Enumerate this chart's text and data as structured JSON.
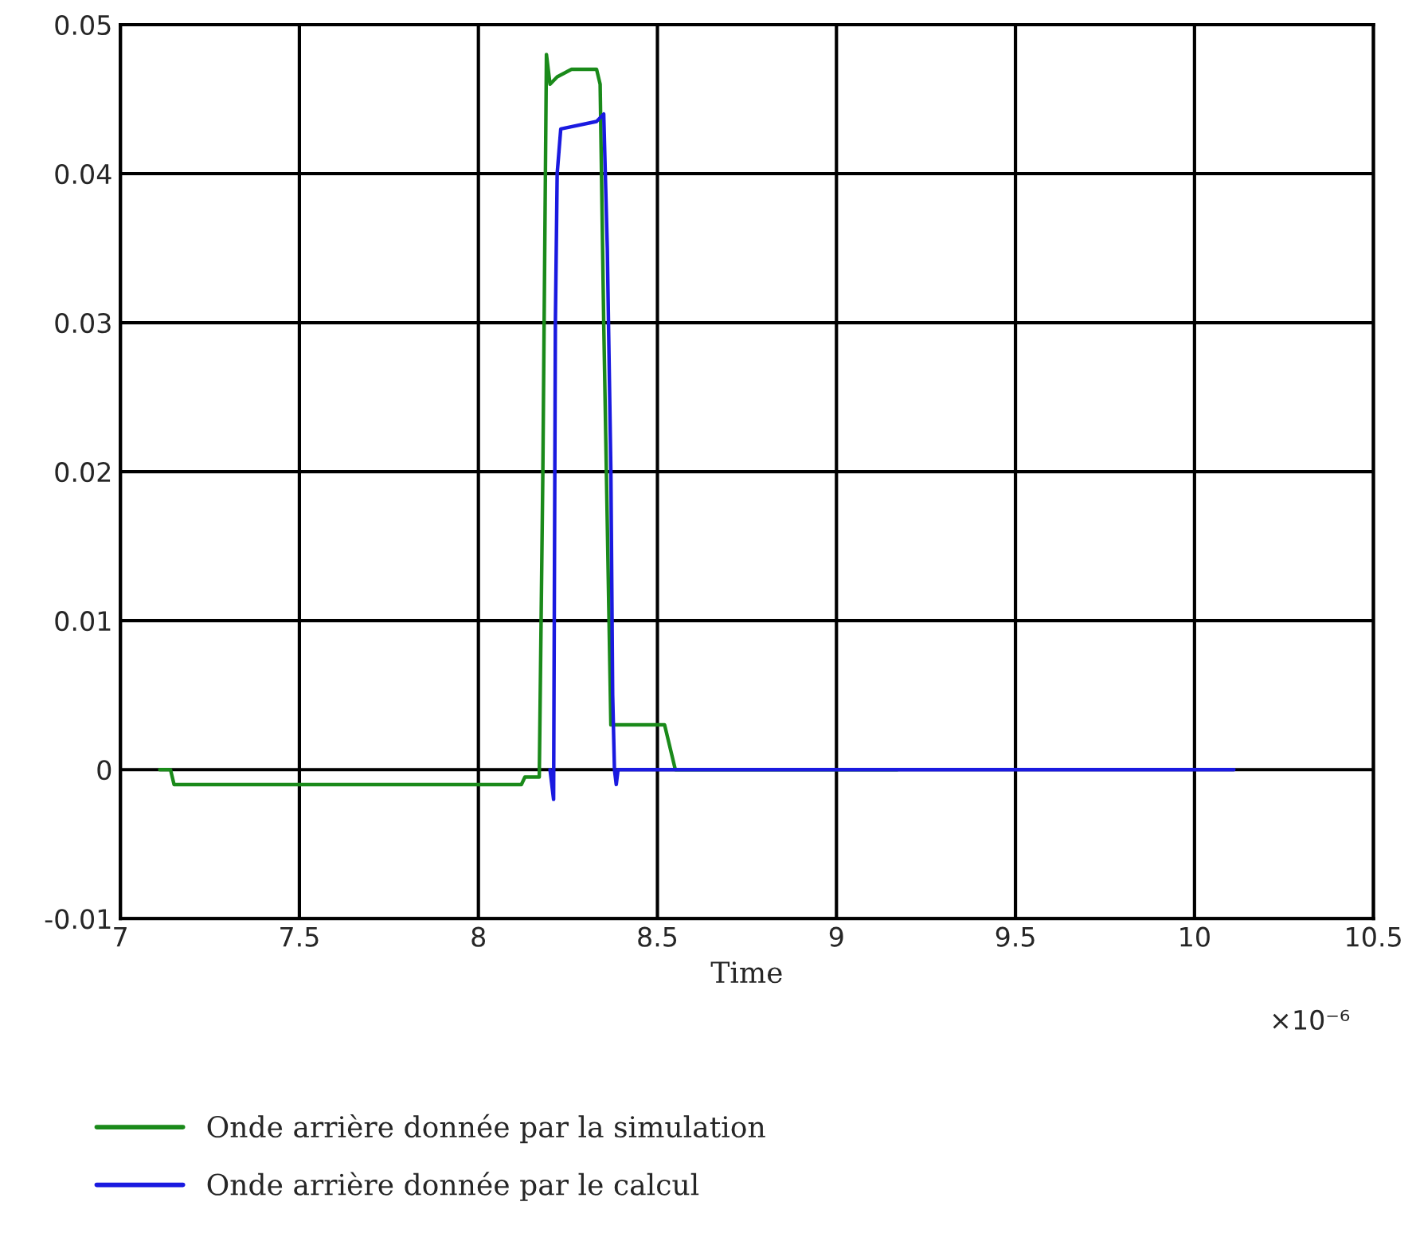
{
  "chart_data": {
    "type": "line",
    "xlabel": "Time",
    "annotations": [
      "×10⁻⁶"
    ],
    "xlim": [
      7,
      10.5
    ],
    "xticks": [
      7,
      7.5,
      8,
      8.5,
      9,
      9.5,
      10,
      10.5
    ],
    "ylim": [
      -0.01,
      0.05
    ],
    "yticks": [
      -0.01,
      0,
      0.01,
      0.02,
      0.03,
      0.04,
      0.05
    ],
    "grid": true,
    "legend": "bottom left",
    "line_style": "solid",
    "series": [
      {
        "name": "Onde arrière donnée par la simulation",
        "color": "#1a8a1a",
        "x": [
          7.11,
          7.14,
          7.15,
          8.12,
          8.13,
          8.17,
          8.18,
          8.19,
          8.2,
          8.22,
          8.26,
          8.33,
          8.34,
          8.35,
          8.37,
          8.37,
          8.52,
          8.55,
          8.7,
          9.17
        ],
        "values": [
          0,
          0,
          -0.001,
          -0.001,
          -0.0005,
          -0.0005,
          0.02,
          0.048,
          0.046,
          0.0465,
          0.047,
          0.047,
          0.046,
          0.03,
          0.003,
          0.003,
          0.003,
          0,
          0,
          0
        ]
      },
      {
        "name": "Onde arrière donnée par le calcul",
        "color": "#1a1ae0",
        "x": [
          8.2,
          8.21,
          8.215,
          8.22,
          8.23,
          8.33,
          8.35,
          8.36,
          8.37,
          8.375,
          8.38,
          8.385,
          8.39,
          8.45,
          9.0,
          10.11
        ],
        "values": [
          0,
          -0.002,
          0.03,
          0.04,
          0.043,
          0.0435,
          0.044,
          0.035,
          0.02,
          0.005,
          0,
          -0.001,
          0,
          0,
          0,
          0
        ]
      }
    ]
  }
}
